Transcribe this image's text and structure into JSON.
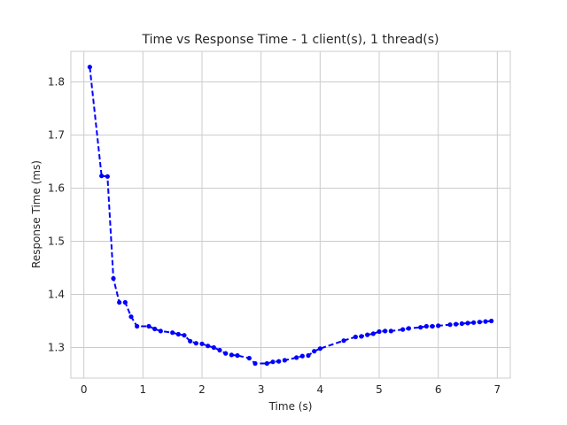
{
  "chart_data": {
    "type": "line",
    "title": "Time vs Response Time - 1 client(s), 1 thread(s)",
    "xlabel": "Time (s)",
    "ylabel": "Response Time (ms)",
    "xlim": [
      -0.22,
      7.22
    ],
    "ylim": [
      1.2425,
      1.8575
    ],
    "xticks": [
      0,
      1,
      2,
      3,
      4,
      5,
      6,
      7
    ],
    "yticks": [
      1.3,
      1.4,
      1.5,
      1.6,
      1.7,
      1.8
    ],
    "xtick_labels": [
      "0",
      "1",
      "2",
      "3",
      "4",
      "5",
      "6",
      "7"
    ],
    "ytick_labels": [
      "1.3",
      "1.4",
      "1.5",
      "1.6",
      "1.7",
      "1.8"
    ],
    "grid": true,
    "line_style": "dashed",
    "marker": "circle",
    "color": "#0000ff",
    "x": [
      0.1,
      0.3,
      0.4,
      0.5,
      0.6,
      0.7,
      0.8,
      0.9,
      1.1,
      1.2,
      1.3,
      1.5,
      1.6,
      1.7,
      1.8,
      1.9,
      2.0,
      2.1,
      2.2,
      2.3,
      2.4,
      2.5,
      2.6,
      2.8,
      2.9,
      3.1,
      3.2,
      3.3,
      3.4,
      3.6,
      3.7,
      3.8,
      3.9,
      4.0,
      4.4,
      4.6,
      4.7,
      4.8,
      4.9,
      5.0,
      5.1,
      5.2,
      5.4,
      5.5,
      5.7,
      5.8,
      5.9,
      6.0,
      6.2,
      6.3,
      6.4,
      6.5,
      6.6,
      6.7,
      6.8,
      6.9
    ],
    "y": [
      1.828,
      1.623,
      1.622,
      1.43,
      1.385,
      1.385,
      1.358,
      1.34,
      1.34,
      1.335,
      1.331,
      1.328,
      1.325,
      1.323,
      1.312,
      1.308,
      1.307,
      1.303,
      1.3,
      1.295,
      1.289,
      1.286,
      1.285,
      1.28,
      1.27,
      1.27,
      1.273,
      1.274,
      1.276,
      1.281,
      1.284,
      1.285,
      1.293,
      1.298,
      1.313,
      1.32,
      1.321,
      1.324,
      1.326,
      1.33,
      1.331,
      1.331,
      1.334,
      1.336,
      1.338,
      1.34,
      1.34,
      1.341,
      1.343,
      1.344,
      1.345,
      1.346,
      1.347,
      1.348,
      1.349,
      1.35
    ]
  }
}
